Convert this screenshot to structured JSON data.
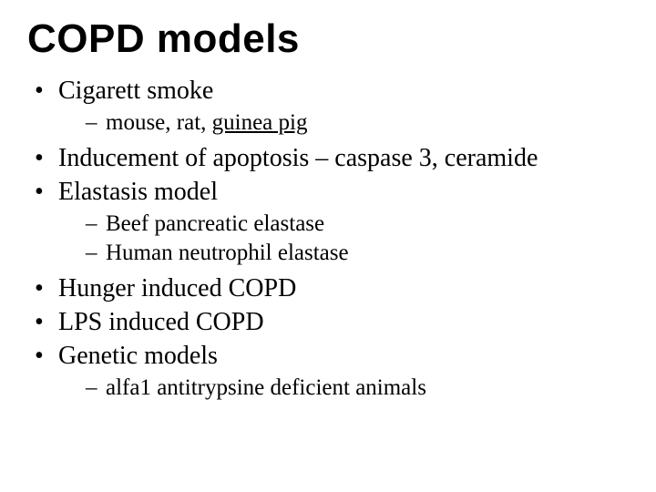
{
  "title": "COPD models",
  "title_font_family": "Arial",
  "title_font_weight": 900,
  "title_font_size_pt": 33,
  "body_font_family": "Times New Roman",
  "body_font_size_pt": 21,
  "sub_font_size_pt": 19,
  "background_color": "#ffffff",
  "text_color": "#000000",
  "bullets": [
    {
      "text": "Cigarett smoke",
      "sub": [
        {
          "pre": "mouse, rat, ",
          "underlined": "guinea pig",
          "post": ""
        }
      ]
    },
    {
      "text": "Inducement of apoptosis – caspase 3, ceramide"
    },
    {
      "text": "Elastasis model",
      "sub": [
        {
          "pre": "Beef pancreatic elastase",
          "underlined": "",
          "post": ""
        },
        {
          "pre": "Human neutrophil elastase",
          "underlined": "",
          "post": ""
        }
      ]
    },
    {
      "text": "Hunger induced COPD"
    },
    {
      "text": "LPS induced COPD"
    },
    {
      "text": "Genetic models",
      "sub": [
        {
          "pre": "alfa1 antitrypsine deficient animals",
          "underlined": "",
          "post": ""
        }
      ]
    }
  ]
}
